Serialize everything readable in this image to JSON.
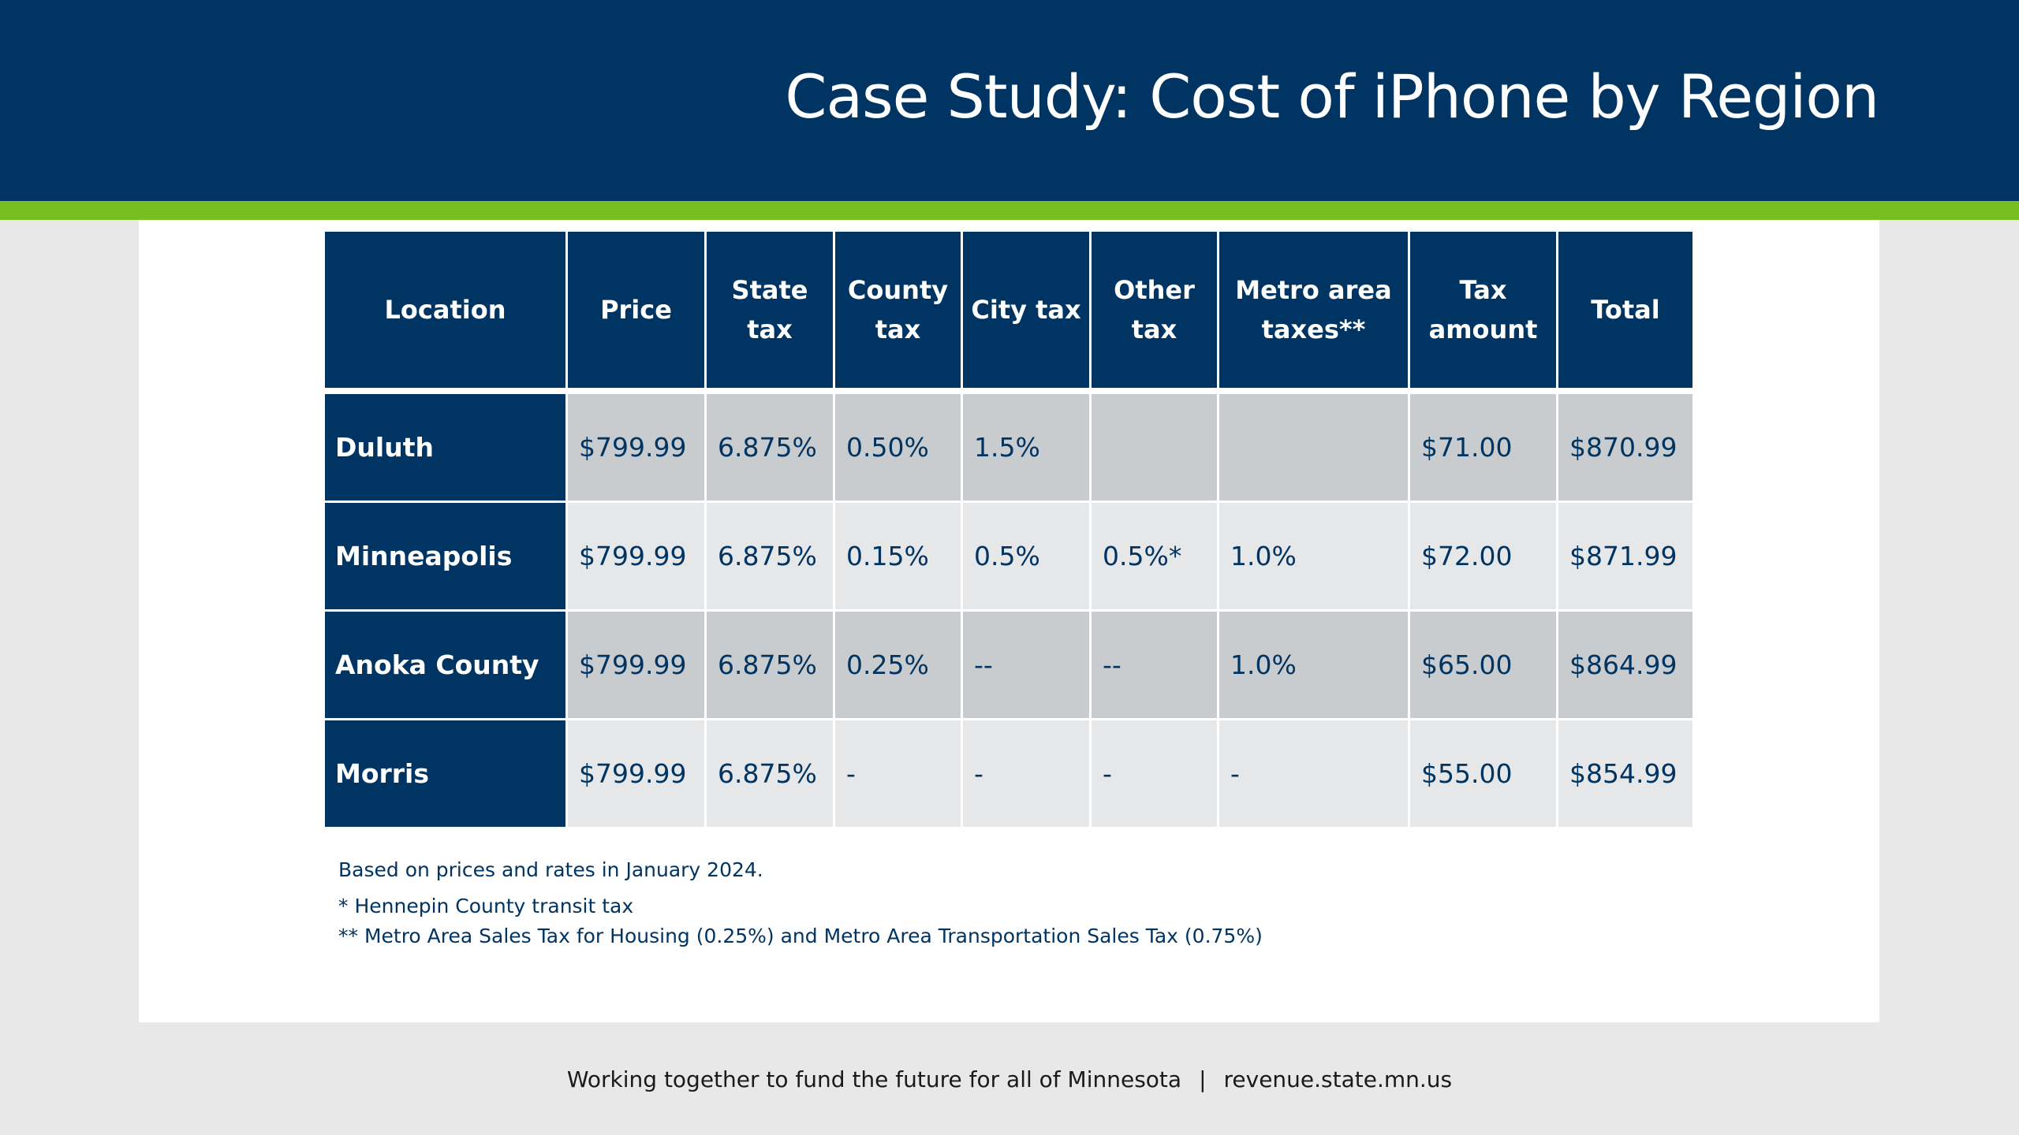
{
  "slide": {
    "title": "Case Study: Cost of iPhone by Region"
  },
  "table": {
    "headers": {
      "location": "Location",
      "price": "Price",
      "state_tax": "State tax",
      "county_tax": "County tax",
      "city_tax": "City tax",
      "other_tax": "Other tax",
      "metro_taxes": "Metro area taxes**",
      "tax_amount": "Tax amount",
      "total": "Total"
    },
    "rows": [
      {
        "location": "Duluth",
        "price": "$799.99",
        "state_tax": "6.875%",
        "county_tax": "0.50%",
        "city_tax": "1.5%",
        "other_tax": "",
        "metro_taxes": "",
        "tax_amount": "$71.00",
        "total": "$870.99"
      },
      {
        "location": "Minneapolis",
        "price": "$799.99",
        "state_tax": "6.875%",
        "county_tax": "0.15%",
        "city_tax": "0.5%",
        "other_tax": "0.5%*",
        "metro_taxes": "1.0%",
        "tax_amount": "$72.00",
        "total": "$871.99"
      },
      {
        "location": "Anoka County",
        "price": "$799.99",
        "state_tax": "6.875%",
        "county_tax": "0.25%",
        "city_tax": "--",
        "other_tax": "--",
        "metro_taxes": "1.0%",
        "tax_amount": "$65.00",
        "total": "$864.99"
      },
      {
        "location": "Morris",
        "price": "$799.99",
        "state_tax": "6.875%",
        "county_tax": "-",
        "city_tax": "-",
        "other_tax": "-",
        "metro_taxes": "-",
        "tax_amount": "$55.00",
        "total": "$854.99"
      }
    ]
  },
  "notes": {
    "date_note": "Based on prices and rates in January 2024.",
    "footnote_1": "* Hennepin County transit tax",
    "footnote_2": "** Metro Area Sales Tax for Housing (0.25%) and Metro Area Transportation Sales Tax (0.75%)"
  },
  "footer": {
    "tagline": "Working together to fund the future for all of Minnesota",
    "separator": "|",
    "url": "revenue.state.mn.us"
  },
  "colors": {
    "navy": "#003462",
    "green_stripe": "#78be21",
    "row_dark": "#c9ccce",
    "row_light": "#e6e7e8",
    "background": "#e8e8e8"
  }
}
